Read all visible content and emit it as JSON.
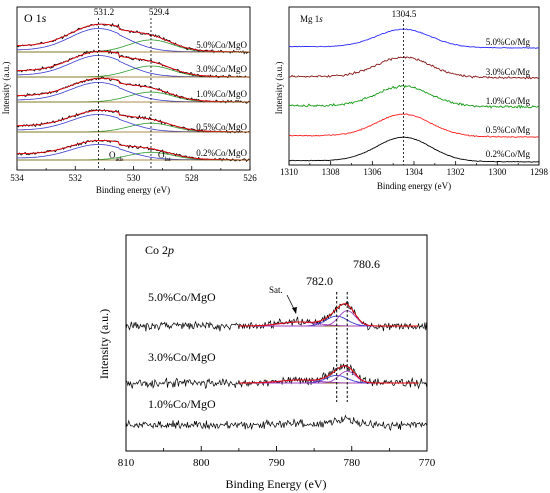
{
  "chart_data": [
    {
      "id": "o1s",
      "type": "line",
      "title_text": "O 1",
      "title_italic": "s",
      "xlabel": "Binding energy (eV)",
      "ylabel": "Intensity (a.u.)",
      "xlim": [
        534,
        526
      ],
      "x_ticks": [
        "534",
        "532",
        "530",
        "528",
        "526"
      ],
      "peaks": [
        "531.2",
        "529.4"
      ],
      "peak_positions": [
        531.2,
        529.4
      ],
      "series": [
        {
          "name": "5.0%Co/MgO"
        },
        {
          "name": "3.0%Co/MgO"
        },
        {
          "name": "1.0%Co/MgO"
        },
        {
          "name": "0.5%Co/MgO"
        },
        {
          "name": "0.2%Co/MgO"
        }
      ],
      "component_labels": {
        "o_ads": "O",
        "o_ads_sub": "ads",
        "o_lat": "O",
        "o_lat_sub": "lat"
      },
      "colors": {
        "data": "#000000",
        "fit": "#e8000b",
        "ads": "#3b3bcf",
        "lat": "#2e9b2e",
        "baseline": "#8b6914"
      }
    },
    {
      "id": "mg1s",
      "type": "line",
      "title_text": "Mg 1",
      "title_italic": "s",
      "xlabel": "Binding energy (eV)",
      "ylabel": "Intensity (a.u.)",
      "xlim": [
        1310,
        1298
      ],
      "x_ticks": [
        "1310",
        "1308",
        "1306",
        "1304",
        "1302",
        "1300",
        "1298"
      ],
      "peak": "1304.5",
      "peak_position": 1304.5,
      "series": [
        {
          "name": "5.0%Co/Mg",
          "color": "#2b2bff"
        },
        {
          "name": "3.0%Co/Mg",
          "color": "#8b1a1a"
        },
        {
          "name": "1.0%Co/Mg",
          "color": "#169c16"
        },
        {
          "name": "0.5%Co/Mg",
          "color": "#ff2020"
        },
        {
          "name": "0.2%Co/Mg",
          "color": "#000000"
        }
      ]
    },
    {
      "id": "co2p",
      "type": "line",
      "title_text": "Co 2",
      "title_italic": "p",
      "xlabel": "Binding Energy (eV)",
      "ylabel": "Intensity (a.u.)",
      "xlim": [
        810,
        770
      ],
      "x_ticks": [
        "810",
        "800",
        "790",
        "780",
        "770"
      ],
      "peaks": [
        "782.0",
        "780.6"
      ],
      "peak_positions": [
        782.0,
        780.6
      ],
      "sat_label": "Sat.",
      "series": [
        {
          "name": "5.0%Co/MgO"
        },
        {
          "name": "3.0%Co/MgO"
        },
        {
          "name": "1.0%Co/MgO"
        }
      ],
      "colors": {
        "data": "#000000",
        "fit": "#e8000b",
        "comp1": "#3b3bcf",
        "comp2": "#a040c0",
        "baseline": "#8b6914"
      }
    }
  ]
}
